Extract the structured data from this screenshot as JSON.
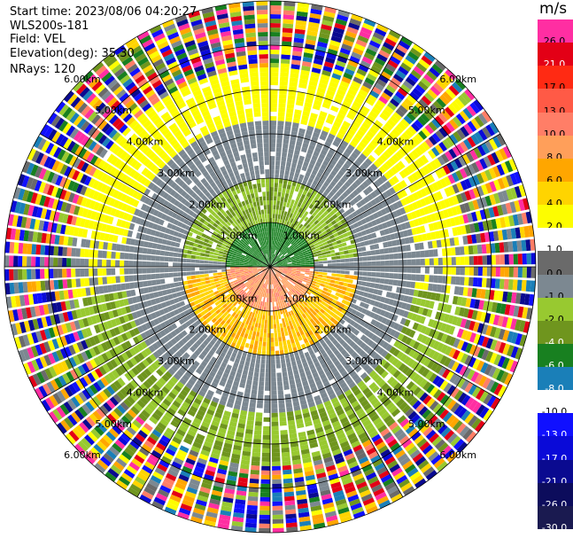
{
  "header": {
    "start_time": "Start time: 2023/08/06 04:20:27",
    "station": "WLS200s-181",
    "field": "Field: VEL",
    "elevation": "Elevation(deg): 35.30",
    "nrays": "NRays: 120"
  },
  "colorbar": {
    "unit": "m/s",
    "bins": [
      {
        "label": "26.0",
        "color": "#ff2ea2"
      },
      {
        "label": "21.0",
        "color": "#e30016"
      },
      {
        "label": "17.0",
        "color": "#ff2a13"
      },
      {
        "label": "13.0",
        "color": "#ff5a46"
      },
      {
        "label": "10.0",
        "color": "#ff7e67"
      },
      {
        "label": "8.0",
        "color": "#ff9f5a"
      },
      {
        "label": "6.0",
        "color": "#ffa600"
      },
      {
        "label": "4.0",
        "color": "#ffd400"
      },
      {
        "label": "2.0",
        "color": "#fdfd00"
      },
      {
        "label": "1.0",
        "color": "#ffffff"
      },
      {
        "label": "0.0",
        "color": "#6a6a6a"
      },
      {
        "label": "-1.0",
        "color": "#7c8891"
      },
      {
        "label": "-2.0",
        "color": "#98c930"
      },
      {
        "label": "-4.0",
        "color": "#6f951e"
      },
      {
        "label": "-6.0",
        "color": "#188020"
      },
      {
        "label": "-8.0",
        "color": "#1a7fb8"
      },
      {
        "label": "-10.0",
        "color": "#ffffff"
      },
      {
        "label": "-13.0",
        "color": "#1010ff"
      },
      {
        "label": "-17.0",
        "color": "#0a0ad8"
      },
      {
        "label": "-21.0",
        "color": "#0a0a90"
      },
      {
        "label": "-26.0",
        "color": "#0c0c5c"
      },
      {
        "label": "-30.0",
        "color": "#1a1a50"
      }
    ]
  },
  "chart_data": {
    "type": "ppi",
    "field": "VEL",
    "units": "m/s",
    "nrays": 120,
    "max_range_km": 6.0,
    "range_rings_km": [
      1.0,
      2.0,
      3.0,
      4.0,
      5.0,
      6.0
    ],
    "range_ring_labels": [
      "1.00km",
      "2.00km",
      "3.00km",
      "4.00km",
      "5.00km",
      "6.00km"
    ],
    "regions": [
      {
        "range_km": [
          0.0,
          1.0
        ],
        "direction": "north",
        "value_ms": -6.0
      },
      {
        "range_km": [
          0.0,
          1.0
        ],
        "direction": "south",
        "value_ms": 8.0
      },
      {
        "range_km": [
          1.0,
          2.0
        ],
        "direction": "north",
        "value_ms": -2.0
      },
      {
        "range_km": [
          1.0,
          2.0
        ],
        "direction": "south",
        "value_ms": 5.0
      },
      {
        "range_km": [
          2.0,
          3.3
        ],
        "direction": "all",
        "value_ms": -0.5
      },
      {
        "range_km": [
          3.3,
          4.5
        ],
        "direction": "north",
        "value_ms": 2.0
      },
      {
        "range_km": [
          3.3,
          4.5
        ],
        "direction": "south",
        "value_ms": -2.0
      },
      {
        "range_km": [
          4.5,
          6.0
        ],
        "direction": "all",
        "value_ms": "noise"
      }
    ]
  }
}
